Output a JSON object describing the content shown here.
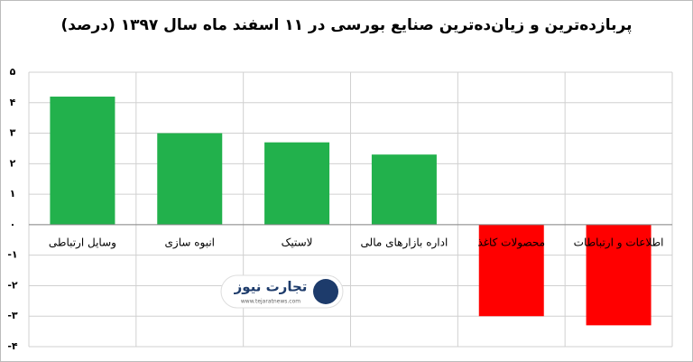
{
  "chart_data": {
    "type": "bar",
    "title": "پربازده‌ترین و زیان‌ده‌ترین صنایع بورسی در ۱۱ اسفند ماه سال ۱۳۹۷ (درصد)",
    "categories": [
      "وسایل ارتباطی",
      "انبوه سازی",
      "لاستیک",
      "اداره بازارهای مالی",
      "محصولات کاغذ",
      "اطلاعات و ارتباطات"
    ],
    "values": [
      4.2,
      3.0,
      2.7,
      2.3,
      -3.0,
      -3.3
    ],
    "colors": [
      "#22b14c",
      "#22b14c",
      "#22b14c",
      "#22b14c",
      "#ff0000",
      "#ff0000"
    ],
    "ylim": [
      -4,
      5
    ],
    "yticks": [
      {
        "value": -4,
        "label": "-۴"
      },
      {
        "value": -3,
        "label": "-۳"
      },
      {
        "value": -2,
        "label": "-۲"
      },
      {
        "value": -1,
        "label": "-۱"
      },
      {
        "value": 0,
        "label": "۰"
      },
      {
        "value": 1,
        "label": "۱"
      },
      {
        "value": 2,
        "label": "۲"
      },
      {
        "value": 3,
        "label": "۳"
      },
      {
        "value": 4,
        "label": "۴"
      },
      {
        "value": 5,
        "label": "۵"
      }
    ],
    "grid": true,
    "watermark": {
      "name": "تجارت نیوز",
      "url": "www.tejaratnews.com"
    }
  }
}
